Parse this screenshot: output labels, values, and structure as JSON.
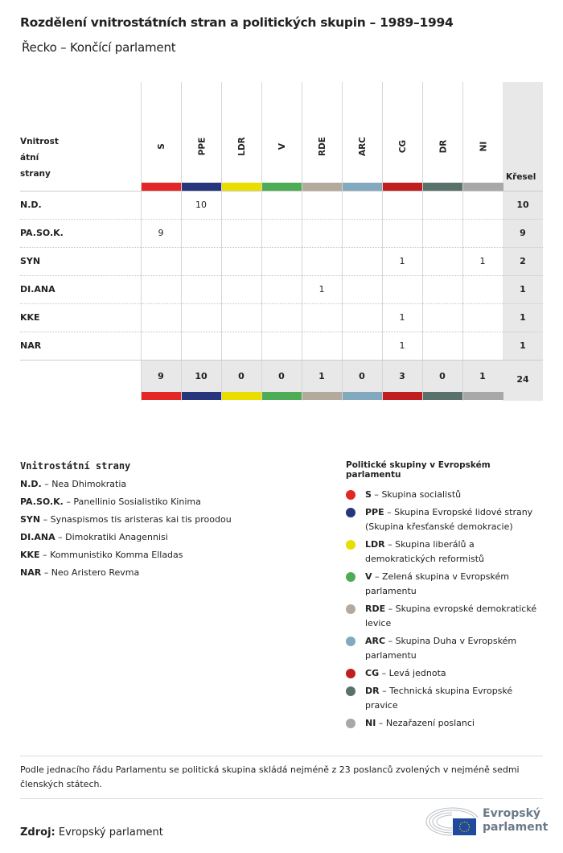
{
  "title": "Rozdělení vnitrostátních stran a politických skupin – 1989–1994",
  "subtitle": "Řecko – Končící parlament",
  "table": {
    "party_header": "Vnitrost\nátní\nstrany",
    "seats_header": "Křesel",
    "groups": [
      {
        "code": "S",
        "color": "#e32626"
      },
      {
        "code": "PPE",
        "color": "#27367c"
      },
      {
        "code": "LDR",
        "color": "#eadd00"
      },
      {
        "code": "V",
        "color": "#4fac56"
      },
      {
        "code": "RDE",
        "color": "#b3a99d"
      },
      {
        "code": "ARC",
        "color": "#83a9bf"
      },
      {
        "code": "CG",
        "color": "#c11e1f"
      },
      {
        "code": "DR",
        "color": "#59716a"
      },
      {
        "code": "NI",
        "color": "#a8a8a8"
      }
    ],
    "rows": [
      {
        "party": "N.D.",
        "values": [
          "",
          "10",
          "",
          "",
          "",
          "",
          "",
          "",
          ""
        ],
        "total": "10"
      },
      {
        "party": "PA.SO.K.",
        "values": [
          "9",
          "",
          "",
          "",
          "",
          "",
          "",
          "",
          ""
        ],
        "total": "9"
      },
      {
        "party": "SYN",
        "values": [
          "",
          "",
          "",
          "",
          "",
          "",
          "1",
          "",
          "1"
        ],
        "total": "2"
      },
      {
        "party": "DI.ANA",
        "values": [
          "",
          "",
          "",
          "",
          "1",
          "",
          "",
          "",
          ""
        ],
        "total": "1"
      },
      {
        "party": "KKE",
        "values": [
          "",
          "",
          "",
          "",
          "",
          "",
          "1",
          "",
          ""
        ],
        "total": "1"
      },
      {
        "party": "NAR",
        "values": [
          "",
          "",
          "",
          "",
          "",
          "",
          "1",
          "",
          ""
        ],
        "total": "1"
      }
    ],
    "totals": [
      "9",
      "10",
      "0",
      "0",
      "1",
      "0",
      "3",
      "0",
      "1"
    ],
    "grand_total": "24"
  },
  "legend_parties": {
    "title": "Vnitrostátní strany",
    "items": [
      {
        "code": "N.D.",
        "name": "Nea Dhimokratia"
      },
      {
        "code": "PA.SO.K.",
        "name": "Panellinio Sosialistiko Kinima"
      },
      {
        "code": "SYN",
        "name": "Synaspismos tis aristeras kai tis proodou"
      },
      {
        "code": "DI.ANA",
        "name": "Dimokratiki Anagennisi"
      },
      {
        "code": "KKE",
        "name": "Kommunistiko Komma Elladas"
      },
      {
        "code": "NAR",
        "name": "Neo Aristero Revma"
      }
    ]
  },
  "legend_groups": {
    "title": "Politické skupiny v Evropském parlamentu",
    "items": [
      {
        "code": "S",
        "name": "Skupina socialistů"
      },
      {
        "code": "PPE",
        "name": "Skupina Evropské lidové strany (Skupina křesťanské demokracie)"
      },
      {
        "code": "LDR",
        "name": "Skupina liberálů a demokratických reformistů"
      },
      {
        "code": "V",
        "name": "Zelená skupina v Evropském parlamentu"
      },
      {
        "code": "RDE",
        "name": "Skupina evropské demokratické levice"
      },
      {
        "code": "ARC",
        "name": "Skupina Duha v Evropském parlamentu"
      },
      {
        "code": "CG",
        "name": "Levá jednota"
      },
      {
        "code": "DR",
        "name": "Technická skupina Evropské pravice"
      },
      {
        "code": "NI",
        "name": "Nezařazení poslanci"
      }
    ]
  },
  "note": "Podle jednacího řádu Parlamentu se politická skupina skládá nejméně z 23 poslanců zvolených v nejméně sedmi členských státech.",
  "source": {
    "label": "Zdroj:",
    "value": "Evropský parlament"
  },
  "logo": {
    "line1": "Evropský",
    "line2": "parlament",
    "flag_color": "#1f4b9c"
  }
}
